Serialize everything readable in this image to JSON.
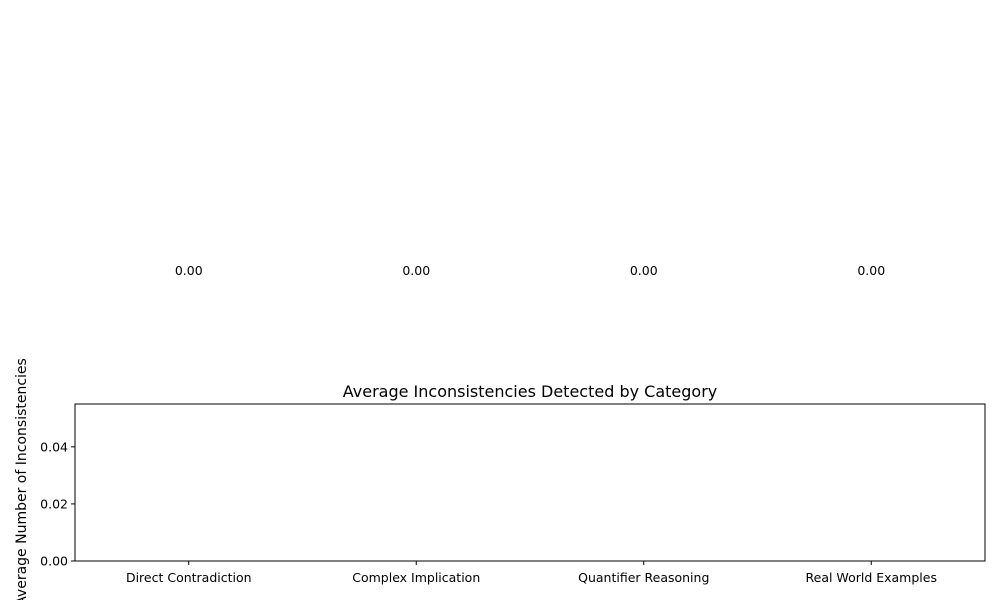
{
  "chart_data": {
    "type": "bar",
    "title": "Average Inconsistencies Detected by Category",
    "xlabel": "",
    "ylabel": "Average Number of Inconsistencies",
    "categories": [
      "Direct Contradiction",
      "Complex Implication",
      "Quantifier Reasoning",
      "Real World Examples"
    ],
    "values": [
      0.0,
      0.0,
      0.0,
      0.0
    ],
    "value_labels": [
      "0.00",
      "0.00",
      "0.00",
      "0.00"
    ],
    "ylim": [
      0,
      0.055
    ],
    "yticks": [
      0.0,
      0.02,
      0.04
    ],
    "ytick_labels": [
      "0.00",
      "0.02",
      "0.04"
    ],
    "grid": false,
    "bar_color": "#1f77b4"
  }
}
